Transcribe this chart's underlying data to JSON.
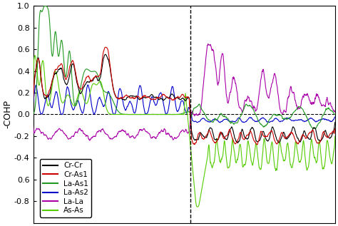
{
  "title": "",
  "ylabel": "-COHP",
  "ylim": [
    -1.0,
    1.0
  ],
  "yticks": [
    -0.8,
    -0.6,
    -0.4,
    -0.2,
    0.0,
    0.2,
    0.4,
    0.6,
    0.8,
    1.0
  ],
  "vline1": 0.52,
  "hline": 0.0,
  "legend_entries": [
    "Cr-Cr",
    "Cr-As1",
    "La-As1",
    "La-As2",
    "La-La",
    "As-As"
  ],
  "legend_colors": [
    "#000000",
    "#cc0000",
    "#229922",
    "#0000cc",
    "#aa00aa",
    "#55cc00"
  ],
  "line_colors": {
    "Cr_Cr": "#000000",
    "Cr_As1": "#cc0000",
    "La_As1": "#229922",
    "La_As2": "#0000cc",
    "La_La": "#aa00aa",
    "As_As": "#55cc00"
  },
  "figsize": [
    4.74,
    3.17
  ],
  "dpi": 100,
  "background": "#ffffff"
}
